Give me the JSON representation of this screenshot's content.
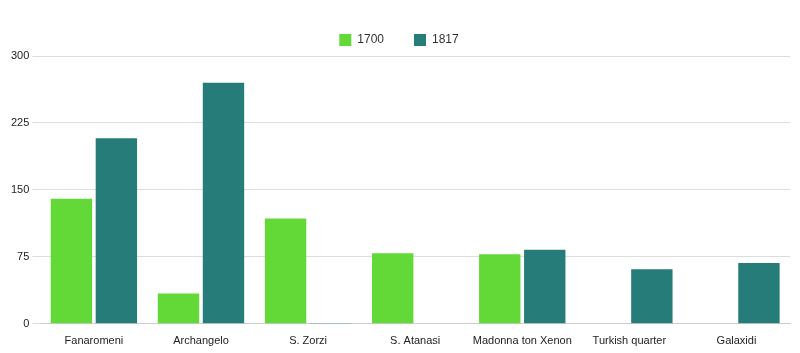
{
  "chart_data": {
    "type": "bar",
    "categories": [
      "Fanaromeni",
      "Archangelo",
      "S. Zorzi",
      "S. Atanasi",
      "Madonna ton Xenon",
      "Turkish quarter",
      "Galaxidi"
    ],
    "series": [
      {
        "name": "1700",
        "color": "#62d936",
        "values": [
          140,
          34,
          118,
          79,
          78,
          0,
          0
        ]
      },
      {
        "name": "1817",
        "color": "#267c78",
        "values": [
          208,
          270,
          1,
          0,
          83,
          61,
          68
        ]
      }
    ],
    "ylim": [
      0,
      300
    ],
    "yticks": [
      0,
      75,
      150,
      225,
      300
    ],
    "grid": true,
    "legend": "top"
  }
}
